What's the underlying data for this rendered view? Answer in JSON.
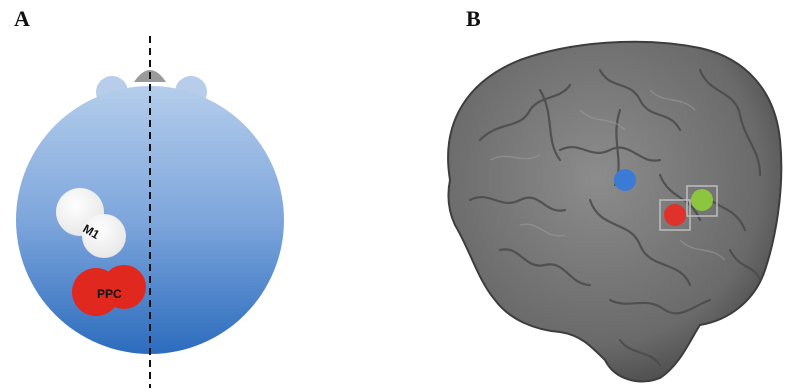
{
  "panels": {
    "a": {
      "label": "A"
    },
    "b": {
      "label": "B"
    }
  },
  "coils": {
    "m1": {
      "label": "M1",
      "color": "#ffffff"
    },
    "ppc": {
      "label": "PPC",
      "color": "#e0281e"
    }
  },
  "brain_markers": [
    {
      "name": "blue",
      "color": "#3b7bd6"
    },
    {
      "name": "red",
      "color": "#e0322a"
    },
    {
      "name": "green",
      "color": "#8cc63e"
    }
  ],
  "colors": {
    "head_top": "#a9c5e8",
    "head_bottom": "#2f6fc0",
    "brain": "#6f6f6f"
  }
}
